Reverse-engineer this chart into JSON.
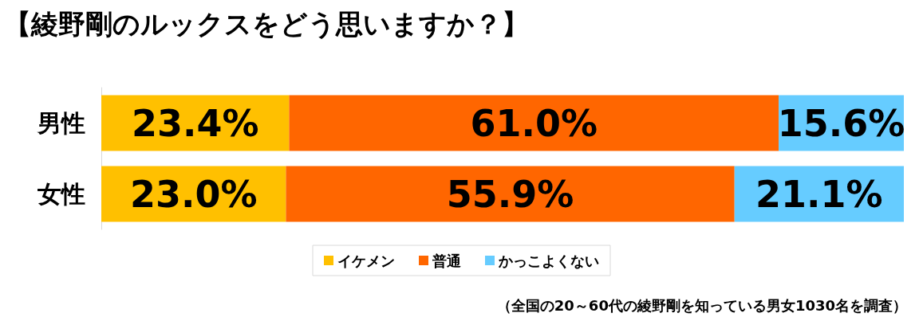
{
  "chart_data": {
    "type": "bar",
    "orientation": "horizontal",
    "stacked": true,
    "title": "【綾野剛のルックスをどう思いますか？】",
    "categories": [
      "男性",
      "女性"
    ],
    "series": [
      {
        "name": "イケメン",
        "color": "#ffc000",
        "values": [
          23.4,
          23.0
        ],
        "value_labels": [
          "23.4%",
          "23.0%"
        ]
      },
      {
        "name": "普通",
        "color": "#ff6600",
        "values": [
          61.0,
          55.9
        ],
        "value_labels": [
          "61.0%",
          "55.9%"
        ]
      },
      {
        "name": "かっこよくない",
        "color": "#66ccff",
        "values": [
          15.6,
          21.1
        ],
        "value_labels": [
          "15.6%",
          "21.1%"
        ]
      }
    ],
    "legend": "bottom",
    "grid": false,
    "annotations": [
      "（全国の20～60代の綾野剛を知っている男女1030名を調査）"
    ]
  }
}
